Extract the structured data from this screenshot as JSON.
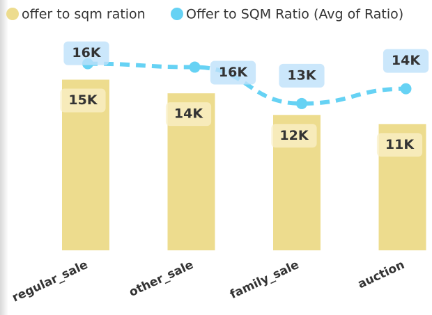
{
  "chart_data": {
    "type": "bar-line",
    "categories": [
      "regular_sale",
      "other_sale",
      "family_sale",
      "auction"
    ],
    "series": [
      {
        "name": "offer to sqm ration",
        "type": "bar",
        "color": "#eddc8e",
        "values": [
          15000,
          13800,
          11900,
          11100
        ],
        "value_labels": [
          "15K",
          "14K",
          "12K",
          "11K"
        ]
      },
      {
        "name": "Offer to SQM Ratio (Avg of Ratio)",
        "type": "line",
        "color": "#66d2f4",
        "values": [
          16400,
          16100,
          12900,
          14200
        ],
        "value_labels": [
          "16K",
          "16K",
          "13K",
          "14K"
        ]
      }
    ],
    "ylim": [
      0,
      22000
    ]
  }
}
